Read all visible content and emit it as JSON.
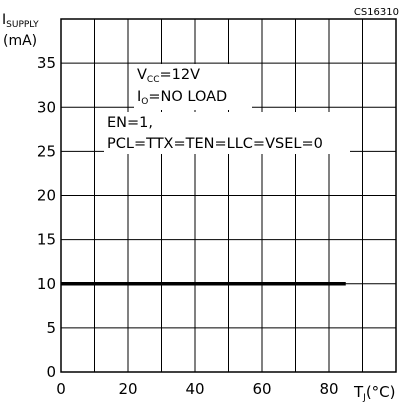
{
  "chart_data": {
    "type": "line",
    "code": "CS16310",
    "ylabel": {
      "main": "I",
      "sub": "SUPPLY",
      "unit": "(mA)"
    },
    "xlabel": {
      "main": "T",
      "sub": "J",
      "unit": "(°C)"
    },
    "xlim": [
      0,
      100
    ],
    "ylim": [
      0,
      40
    ],
    "x_ticks": [
      {
        "value": 0,
        "label": "0"
      },
      {
        "value": 20,
        "label": "20"
      },
      {
        "value": 40,
        "label": "40"
      },
      {
        "value": 60,
        "label": "60"
      },
      {
        "value": 80,
        "label": "80"
      }
    ],
    "y_ticks": [
      {
        "value": 0,
        "label": "0"
      },
      {
        "value": 5,
        "label": "5"
      },
      {
        "value": 10,
        "label": "10"
      },
      {
        "value": 15,
        "label": "15"
      },
      {
        "value": 20,
        "label": "20"
      },
      {
        "value": 25,
        "label": "25"
      },
      {
        "value": 30,
        "label": "30"
      },
      {
        "value": 35,
        "label": "35"
      }
    ],
    "grid": true,
    "series": [
      {
        "x": [
          0,
          85
        ],
        "y": [
          10,
          10
        ],
        "color": "#000000"
      }
    ],
    "annotations": {
      "vcc": {
        "main": "V",
        "sub": "CC",
        "rest": "=12V"
      },
      "io": {
        "main": "I",
        "sub": "O",
        "rest": "=NO  LOAD"
      },
      "en": "EN=1,",
      "pcl": "PCL=TTX=TEN=LLC=VSEL=0"
    }
  }
}
